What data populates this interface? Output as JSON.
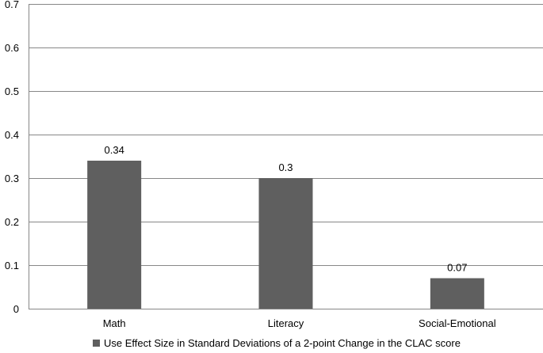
{
  "chart_data": {
    "type": "bar",
    "categories": [
      "Math",
      "Literacy",
      "Social-Emotional"
    ],
    "series": [
      {
        "name": "Use Effect Size in Standard Deviations of a 2-point Change in the CLAC score",
        "values": [
          0.34,
          0.3,
          0.07
        ],
        "data_labels": [
          "0.34",
          "0.3",
          "0.07"
        ],
        "color": "#5f5f5f"
      }
    ],
    "y_ticks": [
      "0",
      "0.1",
      "0.2",
      "0.3",
      "0.4",
      "0.5",
      "0.6",
      "0.7"
    ],
    "ylim": [
      0,
      0.7
    ],
    "grid": true,
    "legend_position": "bottom",
    "colors": {
      "bar": "#5f5f5f",
      "grid": "#878787",
      "axis": "#878787"
    }
  }
}
